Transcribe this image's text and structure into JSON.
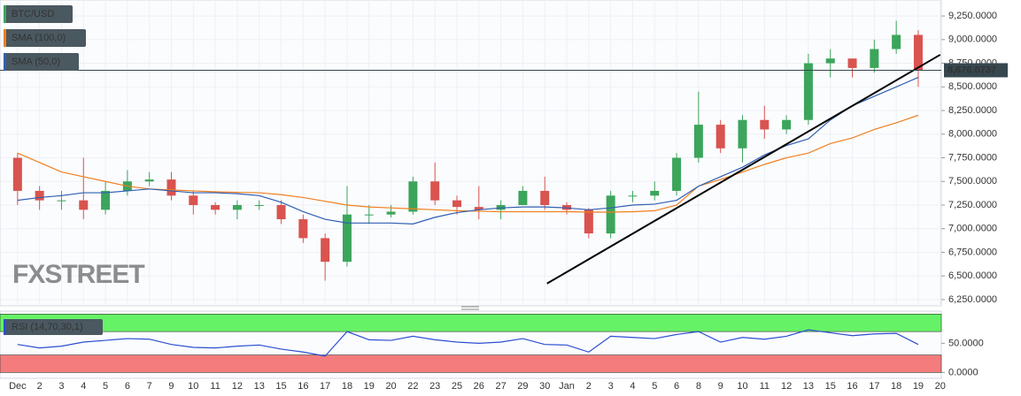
{
  "chart_data": [
    {
      "type": "candlestick",
      "name": "BTC/USD",
      "x": [
        0,
        1,
        2,
        3,
        4,
        5,
        6,
        7,
        8,
        9,
        10,
        11,
        12,
        13,
        14,
        15,
        16,
        17,
        18,
        19,
        20,
        21,
        22,
        23,
        24,
        25,
        26,
        27,
        28,
        29,
        30,
        31,
        32,
        33,
        34,
        35,
        36,
        37,
        38,
        39,
        40,
        41
      ],
      "open": [
        7750,
        7400,
        7300,
        7300,
        7200,
        7400,
        7500,
        7520,
        7350,
        7250,
        7200,
        7250,
        7250,
        7100,
        6900,
        6650,
        7150,
        7150,
        7180,
        7500,
        7300,
        7230,
        7200,
        7250,
        7400,
        7250,
        7200,
        6950,
        7350,
        7350,
        7400,
        7750,
        8100,
        7850,
        8150,
        8050,
        8150,
        8750,
        8800,
        8700,
        8900,
        9050
      ],
      "high": [
        7800,
        7450,
        7400,
        7750,
        7500,
        7620,
        7600,
        7600,
        7400,
        7280,
        7300,
        7300,
        7300,
        7150,
        6950,
        7450,
        7250,
        7250,
        7550,
        7700,
        7350,
        7450,
        7300,
        7450,
        7550,
        7280,
        7220,
        7400,
        7400,
        7500,
        7800,
        8450,
        8150,
        8200,
        8300,
        8200,
        8850,
        8900,
        8800,
        9000,
        9200,
        9100
      ],
      "low": [
        7250,
        7200,
        7200,
        7100,
        7150,
        7350,
        7450,
        7300,
        7150,
        7150,
        7100,
        7200,
        7050,
        6850,
        6450,
        6600,
        7050,
        7120,
        7150,
        7250,
        7150,
        7100,
        7100,
        7250,
        7200,
        7150,
        6900,
        6900,
        7280,
        7300,
        7350,
        7700,
        7800,
        7700,
        7950,
        8000,
        8100,
        8600,
        8600,
        8650,
        8850,
        8500
      ],
      "close": [
        7400,
        7300,
        7300,
        7200,
        7400,
        7500,
        7520,
        7350,
        7250,
        7200,
        7250,
        7250,
        7100,
        6900,
        6650,
        7150,
        7150,
        7180,
        7500,
        7300,
        7230,
        7200,
        7250,
        7400,
        7250,
        7200,
        6950,
        7350,
        7350,
        7400,
        7750,
        8100,
        7850,
        8150,
        8050,
        8150,
        8750,
        8800,
        8700,
        8900,
        9050,
        8676
      ],
      "color_up": "#3ca55c",
      "color_down": "#d9534f",
      "legend_color": "#3ca55c",
      "series": [
        {
          "name": "SMA (100,0)",
          "color": "#f07f1e",
          "values": [
            7800,
            7700,
            7600,
            7550,
            7500,
            7450,
            7420,
            7410,
            7400,
            7390,
            7385,
            7380,
            7360,
            7330,
            7290,
            7250,
            7230,
            7220,
            7210,
            7200,
            7190,
            7185,
            7180,
            7180,
            7180,
            7180,
            7175,
            7175,
            7180,
            7190,
            7250,
            7450,
            7520,
            7600,
            7680,
            7750,
            7800,
            7900,
            7960,
            8050,
            8120,
            8200
          ]
        },
        {
          "name": "SMA (50,0)",
          "color": "#2f5fb3",
          "values": [
            7300,
            7330,
            7350,
            7380,
            7380,
            7400,
            7420,
            7400,
            7380,
            7380,
            7370,
            7350,
            7280,
            7180,
            7100,
            7060,
            7060,
            7060,
            7050,
            7120,
            7170,
            7200,
            7220,
            7230,
            7230,
            7220,
            7200,
            7220,
            7250,
            7260,
            7300,
            7450,
            7550,
            7650,
            7780,
            7880,
            7950,
            8150,
            8300,
            8400,
            8500,
            8600
          ]
        }
      ],
      "last_price": {
        "value": 8676.0737,
        "label": "8,676.0737"
      },
      "trendline": {
        "x": [
          24.1,
          42
        ],
        "y": [
          6420,
          8840
        ]
      },
      "watermark": "FXSTREET",
      "xlim": [
        -0.8,
        42.05
      ],
      "ylim": [
        6184,
        9419
      ],
      "yticks": [
        {
          "value": 6250,
          "label": "6,250.0000"
        },
        {
          "value": 6500,
          "label": "6,500.0000"
        },
        {
          "value": 6750,
          "label": "6,750.0000"
        },
        {
          "value": 7000,
          "label": "7,000.0000"
        },
        {
          "value": 7250,
          "label": "7,250.0000"
        },
        {
          "value": 7500,
          "label": "7,500.0000"
        },
        {
          "value": 7750,
          "label": "7,750.0000"
        },
        {
          "value": 8000,
          "label": "8,000.0000"
        },
        {
          "value": 8250,
          "label": "8,250.0000"
        },
        {
          "value": 8500,
          "label": "8,500.0000"
        },
        {
          "value": 8750,
          "label": "8,750.0000"
        },
        {
          "value": 9000,
          "label": "9,000.0000"
        },
        {
          "value": 9250,
          "label": "9,250.0000"
        }
      ],
      "xticks": [
        {
          "value": 0,
          "label": "Dec"
        },
        {
          "value": 1,
          "label": "2"
        },
        {
          "value": 2,
          "label": "3"
        },
        {
          "value": 3,
          "label": "4"
        },
        {
          "value": 4,
          "label": "5"
        },
        {
          "value": 5,
          "label": "6"
        },
        {
          "value": 6,
          "label": "7"
        },
        {
          "value": 7,
          "label": "9"
        },
        {
          "value": 8,
          "label": "10"
        },
        {
          "value": 9,
          "label": "11"
        },
        {
          "value": 10,
          "label": "12"
        },
        {
          "value": 11,
          "label": "13"
        },
        {
          "value": 12,
          "label": "15"
        },
        {
          "value": 13,
          "label": "16"
        },
        {
          "value": 14,
          "label": "17"
        },
        {
          "value": 15,
          "label": "18"
        },
        {
          "value": 16,
          "label": "19"
        },
        {
          "value": 17,
          "label": "20"
        },
        {
          "value": 18,
          "label": "22"
        },
        {
          "value": 19,
          "label": "23"
        },
        {
          "value": 20,
          "label": "25"
        },
        {
          "value": 21,
          "label": "26"
        },
        {
          "value": 22,
          "label": "27"
        },
        {
          "value": 23,
          "label": "29"
        },
        {
          "value": 24,
          "label": "30"
        },
        {
          "value": 25,
          "label": "Jan"
        },
        {
          "value": 26,
          "label": "2"
        },
        {
          "value": 27,
          "label": "3"
        },
        {
          "value": 28,
          "label": "4"
        },
        {
          "value": 29,
          "label": "5"
        },
        {
          "value": 30,
          "label": "6"
        },
        {
          "value": 31,
          "label": "8"
        },
        {
          "value": 32,
          "label": "9"
        },
        {
          "value": 33,
          "label": "10"
        },
        {
          "value": 34,
          "label": "11"
        },
        {
          "value": 35,
          "label": "12"
        },
        {
          "value": 36,
          "label": "13"
        },
        {
          "value": 37,
          "label": "15"
        },
        {
          "value": 38,
          "label": "16"
        },
        {
          "value": 39,
          "label": "17"
        },
        {
          "value": 40,
          "label": "18"
        },
        {
          "value": 41,
          "label": "19"
        },
        {
          "value": 42,
          "label": "20"
        }
      ],
      "grid": true
    },
    {
      "type": "line",
      "x": [
        0,
        1,
        2,
        3,
        4,
        5,
        6,
        7,
        8,
        9,
        10,
        11,
        12,
        13,
        14,
        15,
        16,
        17,
        18,
        19,
        20,
        21,
        22,
        23,
        24,
        25,
        26,
        27,
        28,
        29,
        30,
        31,
        32,
        33,
        34,
        35,
        36,
        37,
        38,
        39,
        40,
        41
      ],
      "series": [
        {
          "name": "RSI (14,70,30,1)",
          "color": "#2b4fd1",
          "values": [
            48,
            42,
            45,
            52,
            55,
            58,
            57,
            48,
            43,
            42,
            45,
            47,
            40,
            35,
            28,
            70,
            56,
            55,
            62,
            56,
            52,
            50,
            52,
            58,
            48,
            47,
            35,
            62,
            60,
            58,
            65,
            70,
            52,
            60,
            57,
            62,
            73,
            68,
            63,
            66,
            67,
            48
          ]
        }
      ],
      "bands": [
        {
          "from": 70,
          "to": 100,
          "color": "#66f266"
        },
        {
          "from": 0,
          "to": 30,
          "color": "#f47c7c"
        }
      ],
      "xlim": [
        -0.8,
        42.05
      ],
      "ylim": [
        -10,
        105
      ],
      "yticks": [
        {
          "value": 0,
          "label": "0.0000"
        },
        {
          "value": 50,
          "label": "50.0000"
        }
      ]
    }
  ]
}
